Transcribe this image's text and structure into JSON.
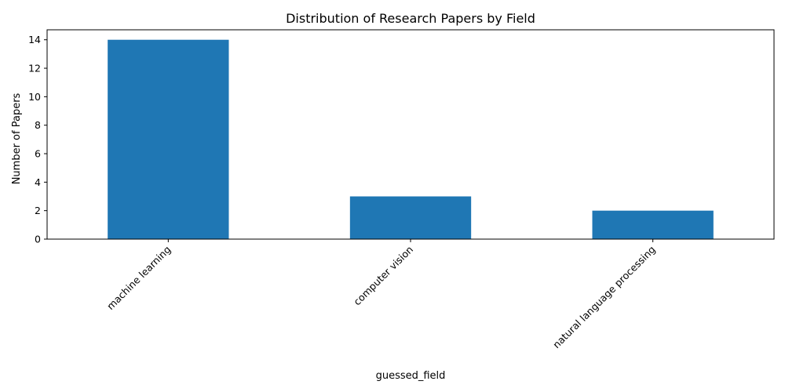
{
  "chart_data": {
    "type": "bar",
    "title": "Distribution of Research Papers by Field",
    "xlabel": "guessed_field",
    "ylabel": "Number of Papers",
    "categories": [
      "machine learning",
      "computer vision",
      "natural language processing"
    ],
    "values": [
      14,
      3,
      2
    ],
    "ylim": [
      0,
      14.7
    ],
    "yticks": [
      0,
      2,
      4,
      6,
      8,
      10,
      12,
      14
    ],
    "bar_color": "#1f77b4",
    "grid": false,
    "legend": "none",
    "xtick_rotation_deg": 45
  }
}
